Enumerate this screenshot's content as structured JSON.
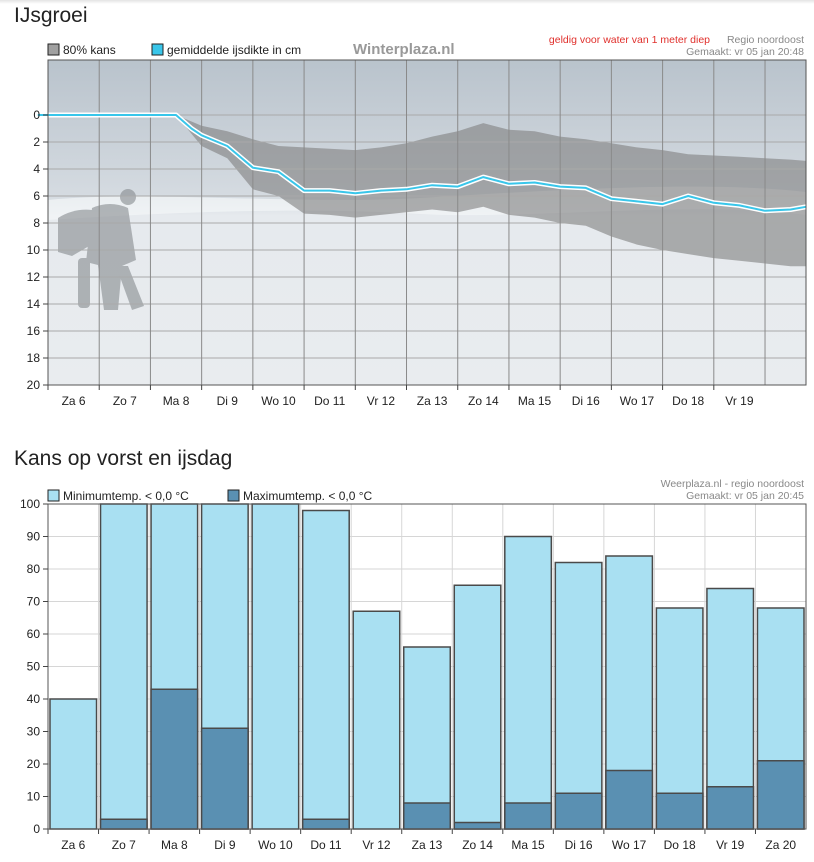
{
  "ice": {
    "section_title": "IJsgroei",
    "legend": {
      "band_label": "80% kans",
      "line_label": "gemiddelde ijsdikte in cm"
    },
    "watermark": "Winterplaza.nl",
    "validity": "geldig voor water van 1 meter diep",
    "region": "Regio noordoost",
    "made": "Gemaakt: vr 05 jan 20:48",
    "colors": {
      "band": "#7f7f7f",
      "line": "#39c6ea",
      "background": "#dfe4ea",
      "sky": "#c9d1d9"
    }
  },
  "frost": {
    "section_title": "Kans op vorst en ijsdag",
    "legend": {
      "min_label": "Minimumtemp. < 0,0 °C",
      "max_label": "Maximumtemp. < 0,0 °C"
    },
    "source": "Weerplaza.nl - regio noordoost",
    "made": "Gemaakt: vr 05 jan 20:45",
    "colors": {
      "min": "#a9e0f2",
      "max": "#5a90b2"
    }
  },
  "chart_data": [
    {
      "type": "area",
      "title": "IJsgroei",
      "xlabel": "",
      "ylabel": "",
      "y_reversed": true,
      "ylim": [
        0,
        20
      ],
      "yticks": [
        0,
        2,
        4,
        6,
        8,
        10,
        12,
        14,
        16,
        18,
        20
      ],
      "xlim": [
        0,
        14.8
      ],
      "categories": [
        "Za 6",
        "Zo 7",
        "Ma 8",
        "Di 9",
        "Wo 10",
        "Do 11",
        "Vr 12",
        "Za 13",
        "Zo 14",
        "Ma 15",
        "Di 16",
        "Wo 17",
        "Do 18",
        "Vr 19"
      ],
      "series": [
        {
          "name": "gemiddelde ijsdikte in cm",
          "x": [
            -0.2,
            2.5,
            2.8,
            3.0,
            3.5,
            4.0,
            4.5,
            5.0,
            5.5,
            6.0,
            6.5,
            7.0,
            7.5,
            8.0,
            8.5,
            9.0,
            9.5,
            10.0,
            10.5,
            11.0,
            11.5,
            12.0,
            12.5,
            13.0,
            13.5,
            14.0,
            14.5,
            14.8
          ],
          "values": [
            0,
            0,
            1.0,
            1.5,
            2.3,
            3.9,
            4.2,
            5.6,
            5.6,
            5.8,
            5.6,
            5.5,
            5.2,
            5.3,
            4.6,
            5.1,
            5.0,
            5.3,
            5.4,
            6.2,
            6.4,
            6.6,
            6.0,
            6.5,
            6.7,
            7.1,
            7.0,
            6.8
          ]
        },
        {
          "name": "80% kans",
          "x": [
            -0.2,
            2.5,
            3.0,
            3.5,
            4.0,
            4.5,
            5.0,
            5.5,
            6.0,
            6.5,
            7.0,
            7.5,
            8.0,
            8.5,
            9.0,
            9.5,
            10.0,
            10.5,
            11.0,
            11.5,
            12.0,
            12.5,
            13.0,
            13.5,
            14.0,
            14.5,
            14.8
          ],
          "low": [
            0,
            0,
            0.8,
            1.2,
            1.8,
            2.3,
            2.4,
            2.5,
            2.6,
            2.4,
            2.1,
            1.6,
            1.2,
            0.6,
            1.1,
            1.2,
            1.6,
            1.8,
            2.1,
            2.4,
            2.6,
            2.9,
            3.0,
            3.1,
            3.2,
            3.3,
            3.4
          ],
          "high": [
            0,
            0,
            2.3,
            3.2,
            5.5,
            6.0,
            7.3,
            7.4,
            7.6,
            7.4,
            7.2,
            7.0,
            7.2,
            6.8,
            7.4,
            7.6,
            8.0,
            8.2,
            9.0,
            9.6,
            10.0,
            10.3,
            10.6,
            10.8,
            11.0,
            11.2,
            11.2
          ]
        }
      ]
    },
    {
      "type": "bar",
      "title": "Kans op vorst en ijsdag",
      "xlabel": "",
      "ylabel": "",
      "ylim": [
        0,
        100
      ],
      "yticks": [
        0,
        10,
        20,
        30,
        40,
        50,
        60,
        70,
        80,
        90,
        100
      ],
      "categories": [
        "Za 6",
        "Zo 7",
        "Ma 8",
        "Di 9",
        "Wo 10",
        "Do 11",
        "Vr 12",
        "Za 13",
        "Zo 14",
        "Ma 15",
        "Di 16",
        "Wo 17",
        "Do 18",
        "Vr 19",
        "Za 20"
      ],
      "series": [
        {
          "name": "Minimumtemp. < 0,0 °C",
          "values": [
            40,
            100,
            100,
            100,
            100,
            98,
            67,
            56,
            75,
            90,
            82,
            84,
            68,
            74,
            68
          ]
        },
        {
          "name": "Maximumtemp. < 0,0 °C",
          "values": [
            0,
            3,
            43,
            31,
            0,
            3,
            0,
            8,
            2,
            8,
            11,
            18,
            11,
            13,
            21
          ]
        }
      ]
    }
  ]
}
